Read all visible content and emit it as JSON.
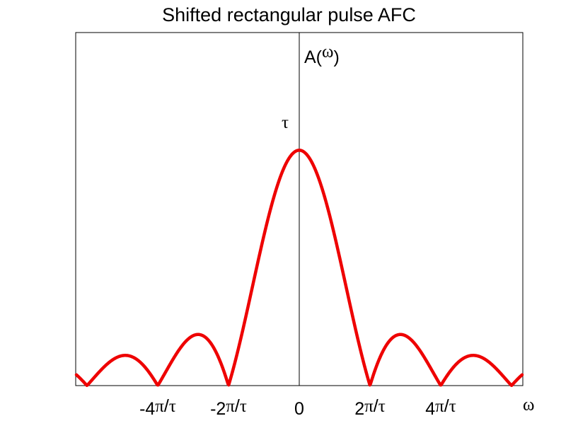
{
  "chart_data": {
    "type": "line",
    "title": "Shifted rectangular pulse AFC",
    "ylabel_prefix": "A(",
    "ylabel_var": "ω",
    "ylabel_suffix": ")",
    "xlabel": "ω",
    "y_peak_label": "τ",
    "function": "tau * |sin(w*tau/2) / (w*tau/2)|",
    "tau": 1,
    "xlim_in_pi_over_tau": [
      -6.3,
      6.3
    ],
    "ylim": [
      0,
      1.5
    ],
    "x_ticks": [
      {
        "value_pi_over_tau": -4,
        "prefix": "-4",
        "pi": "π",
        "slash": "/",
        "tau": "τ"
      },
      {
        "value_pi_over_tau": -2,
        "prefix": "-2",
        "pi": "π",
        "slash": "/",
        "tau": "τ"
      },
      {
        "value_pi_over_tau": 0,
        "prefix": "0",
        "pi": "",
        "slash": "",
        "tau": ""
      },
      {
        "value_pi_over_tau": 2,
        "prefix": "2",
        "pi": "π",
        "slash": "/",
        "tau": "τ"
      },
      {
        "value_pi_over_tau": 4,
        "prefix": "4",
        "pi": "π",
        "slash": "/",
        "tau": "τ"
      }
    ],
    "series": [
      {
        "color": "#ee0000"
      }
    ],
    "grid": false
  }
}
